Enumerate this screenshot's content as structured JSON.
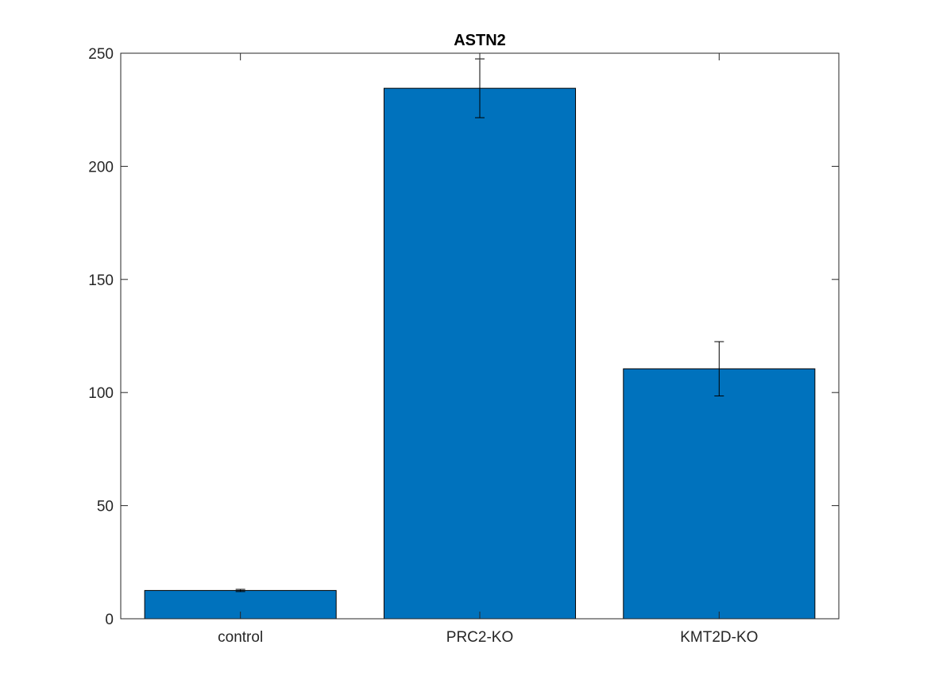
{
  "chart_data": {
    "type": "bar",
    "title": "ASTN2",
    "xlabel": "",
    "ylabel": "",
    "categories": [
      "control",
      "PRC2-KO",
      "KMT2D-KO"
    ],
    "values": [
      12.5,
      234.5,
      110.5
    ],
    "errors": [
      0.5,
      13,
      12
    ],
    "ylim": [
      0,
      250
    ],
    "yticks": [
      0,
      50,
      100,
      150,
      200,
      250
    ],
    "grid": false,
    "legend": "none",
    "bar_color": "#0072BD",
    "edge_color": "#000000"
  }
}
